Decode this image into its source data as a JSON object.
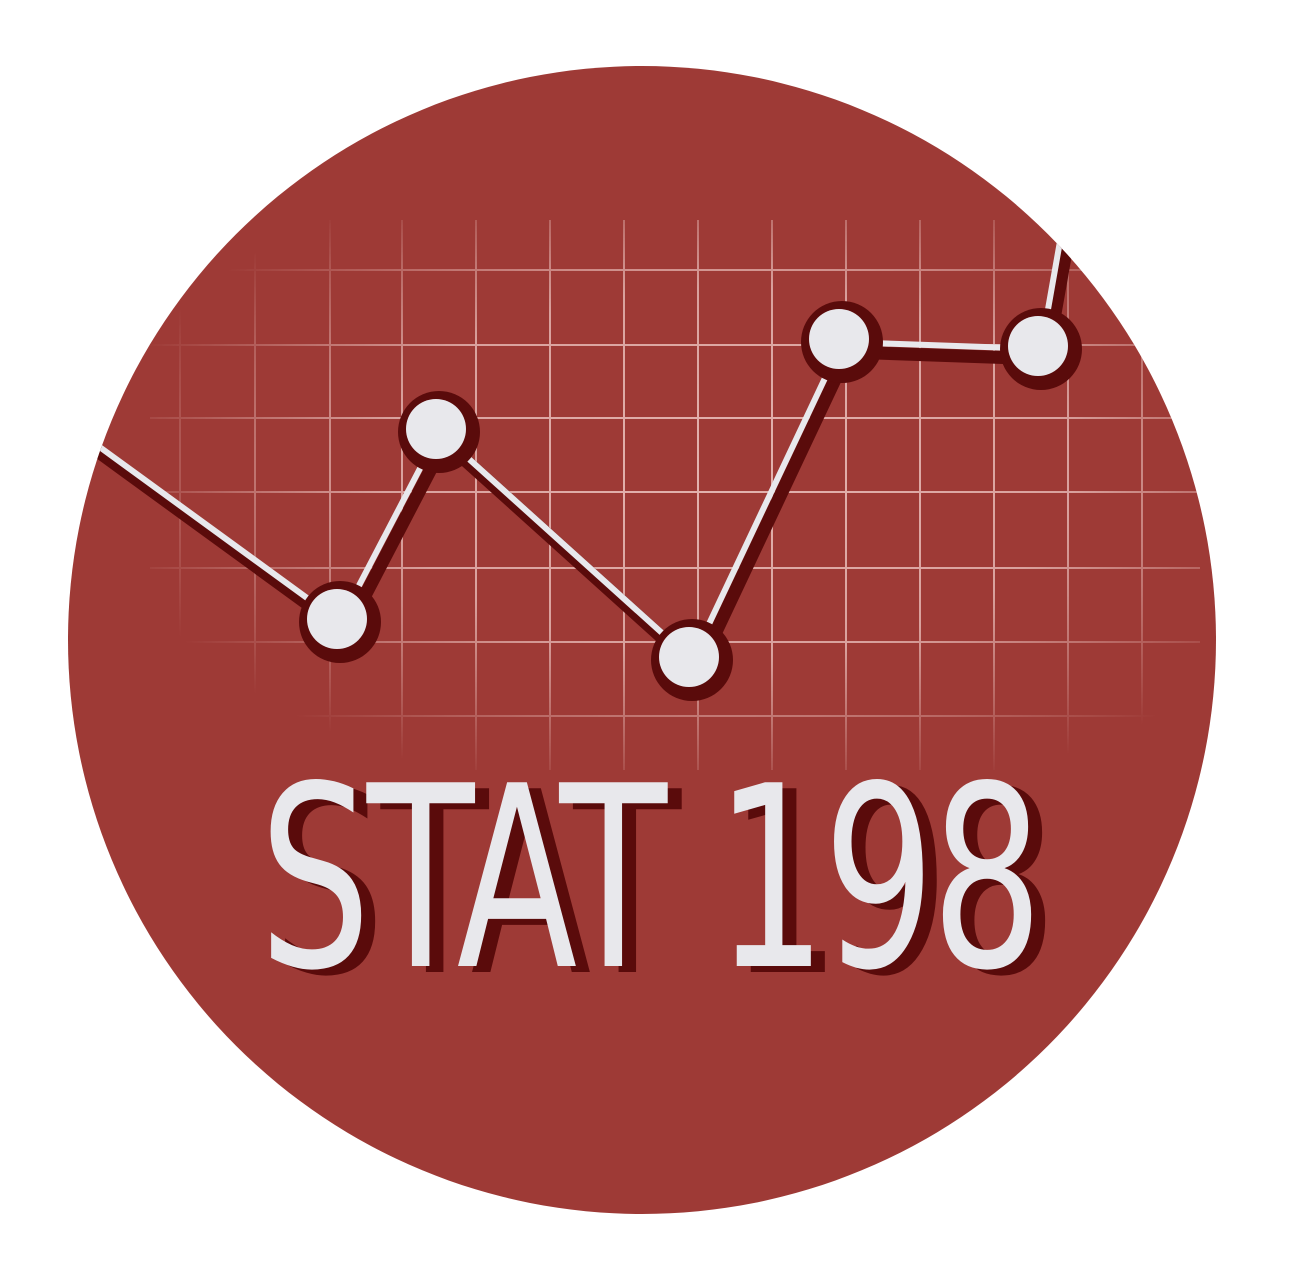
{
  "logo": {
    "text": "STAT 198",
    "colors": {
      "background": "#ffffff",
      "circle": "#9e3a36",
      "shadow": "#5a0b0b",
      "foreground": "#e8e8ec",
      "grid": "#f0c9c5"
    },
    "icon": "line-chart-icon"
  }
}
